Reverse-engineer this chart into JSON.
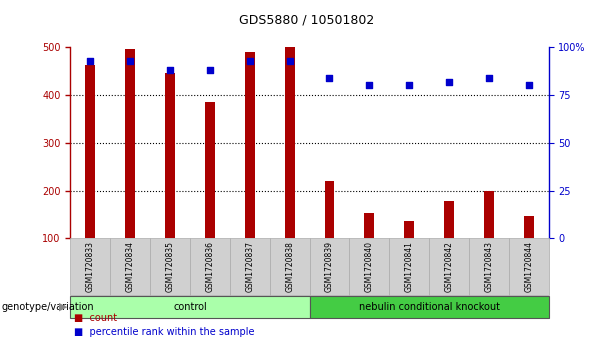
{
  "title": "GDS5880 / 10501802",
  "samples": [
    "GSM1720833",
    "GSM1720834",
    "GSM1720835",
    "GSM1720836",
    "GSM1720837",
    "GSM1720838",
    "GSM1720839",
    "GSM1720840",
    "GSM1720841",
    "GSM1720842",
    "GSM1720843",
    "GSM1720844"
  ],
  "bar_values": [
    462,
    497,
    447,
    385,
    490,
    500,
    220,
    153,
    137,
    178,
    200,
    148
  ],
  "scatter_values": [
    93,
    93,
    88,
    88,
    93,
    93,
    84,
    80,
    80,
    82,
    84,
    80
  ],
  "bar_color": "#aa0000",
  "scatter_color": "#0000cc",
  "ylim_left": [
    100,
    500
  ],
  "ylim_right": [
    0,
    100
  ],
  "yticks_left": [
    100,
    200,
    300,
    400,
    500
  ],
  "yticks_right": [
    0,
    25,
    50,
    75,
    100
  ],
  "ytick_labels_right": [
    "0",
    "25",
    "50",
    "75",
    "100%"
  ],
  "grid_values": [
    200,
    300,
    400
  ],
  "groups": [
    {
      "label": "control",
      "start": 0,
      "end": 6,
      "color": "#aaffaa"
    },
    {
      "label": "nebulin conditional knockout",
      "start": 6,
      "end": 12,
      "color": "#44cc44"
    }
  ],
  "group_label": "genotype/variation",
  "legend_items": [
    {
      "label": "count",
      "color": "#aa0000"
    },
    {
      "label": "percentile rank within the sample",
      "color": "#0000cc"
    }
  ],
  "bar_width": 0.25,
  "label_bg_color": "#d0d0d0",
  "label_border_color": "#aaaaaa",
  "background_color": "#ffffff",
  "title_fontsize": 9,
  "tick_fontsize": 7,
  "label_fontsize": 5.5,
  "group_fontsize": 7,
  "legend_fontsize": 7
}
